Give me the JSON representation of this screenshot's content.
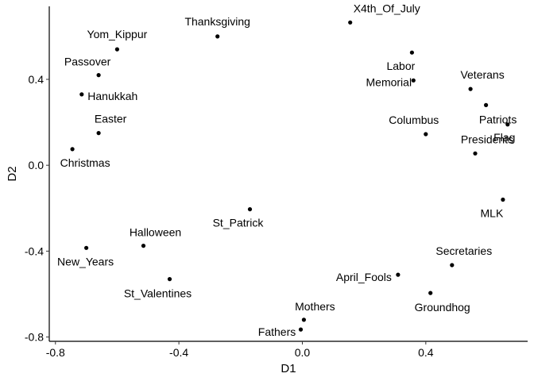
{
  "chart_data": {
    "type": "scatter",
    "title": "",
    "xlabel": "D1",
    "ylabel": "D2",
    "xlim": [
      -0.82,
      0.73
    ],
    "ylim": [
      -0.82,
      0.74
    ],
    "grid": false,
    "xticks": [
      -0.8,
      -0.4,
      0.0,
      0.4
    ],
    "xtick_labels": [
      "-0.8",
      "-0.4",
      "0.0",
      "0.4"
    ],
    "yticks": [
      0.4,
      0.0,
      -0.4,
      -0.8
    ],
    "ytick_labels": [
      "0.4",
      "0.0",
      "-0.4",
      "-0.8"
    ],
    "points": [
      {
        "label": "X4th_Of_July",
        "x": 0.155,
        "y": 0.665
      },
      {
        "label": "Thanksgiving",
        "x": -0.275,
        "y": 0.6
      },
      {
        "label": "Yom_Kippur",
        "x": -0.6,
        "y": 0.54
      },
      {
        "label": "Labor",
        "x": 0.355,
        "y": 0.525
      },
      {
        "label": "Passover",
        "x": -0.66,
        "y": 0.42
      },
      {
        "label": "Memorial",
        "x": 0.36,
        "y": 0.395
      },
      {
        "label": "Veterans",
        "x": 0.545,
        "y": 0.355
      },
      {
        "label": "Hanukkah",
        "x": -0.715,
        "y": 0.33
      },
      {
        "label": "Patriots",
        "x": 0.595,
        "y": 0.28
      },
      {
        "label": "Flag",
        "x": 0.665,
        "y": 0.19
      },
      {
        "label": "Easter",
        "x": -0.66,
        "y": 0.15
      },
      {
        "label": "Columbus",
        "x": 0.4,
        "y": 0.145
      },
      {
        "label": "Christmas",
        "x": -0.745,
        "y": 0.075
      },
      {
        "label": "Presidents",
        "x": 0.56,
        "y": 0.055
      },
      {
        "label": "MLK",
        "x": 0.65,
        "y": -0.16
      },
      {
        "label": "St_Patrick",
        "x": -0.17,
        "y": -0.205
      },
      {
        "label": "Halloween",
        "x": -0.515,
        "y": -0.375
      },
      {
        "label": "New_Years",
        "x": -0.7,
        "y": -0.385
      },
      {
        "label": "Secretaries",
        "x": 0.485,
        "y": -0.465
      },
      {
        "label": "April_Fools",
        "x": 0.31,
        "y": -0.51
      },
      {
        "label": "St_Valentines",
        "x": -0.43,
        "y": -0.53
      },
      {
        "label": "Groundhog",
        "x": 0.415,
        "y": -0.595
      },
      {
        "label": "Mothers",
        "x": 0.005,
        "y": -0.72
      },
      {
        "label": "Fathers",
        "x": -0.005,
        "y": -0.765
      }
    ]
  }
}
